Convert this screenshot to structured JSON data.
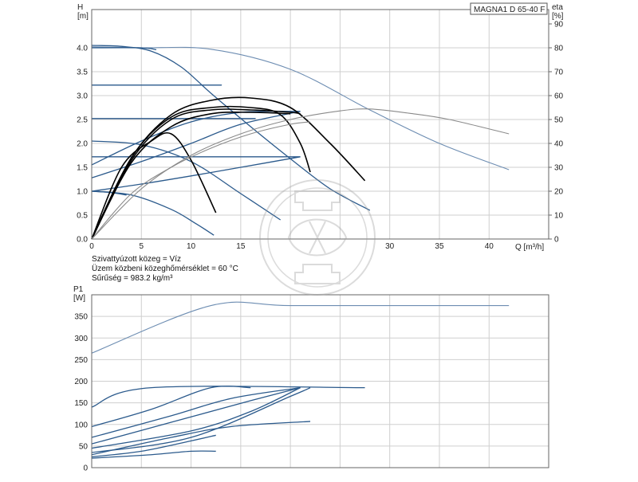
{
  "chart_data": [
    {
      "type": "line",
      "title": "MAGNA1 D 65-40 F",
      "ylabel": "H",
      "yunit": "[m]",
      "y2label": "eta",
      "y2unit": "[%]",
      "xlabel": "Q [m³/h]",
      "xlim": [
        0,
        46
      ],
      "ylim": [
        0,
        4.8
      ],
      "y2lim": [
        0,
        96
      ],
      "xticks": [
        0,
        5,
        10,
        15,
        20,
        25,
        30,
        35,
        40
      ],
      "xticklabels": [
        "0",
        "5",
        "10",
        "15",
        "",
        "",
        "30",
        "35",
        "40"
      ],
      "yticks": [
        0.0,
        0.5,
        1.0,
        1.5,
        2.0,
        2.5,
        3.0,
        3.5,
        4.0
      ],
      "yticklabels": [
        "0.0",
        "0.5",
        "1.0",
        "1.5",
        "2.0",
        "2.5",
        "3.0",
        "3.5",
        "4.0"
      ],
      "y2ticks": [
        0,
        10,
        20,
        30,
        40,
        50,
        60,
        70,
        80,
        90
      ],
      "grid": true,
      "colors": {
        "curve": "#2b5a8c",
        "efficiency": "#000000",
        "twin": "#8a8a8a",
        "grid": "#cfcfcf"
      },
      "series": [
        {
          "role": "head-max-twin",
          "color": "#6d8db2",
          "x": [
            0,
            5,
            12,
            20,
            28,
            35,
            42
          ],
          "y": [
            4.02,
            4.0,
            3.97,
            3.55,
            2.7,
            2.0,
            1.45
          ]
        },
        {
          "role": "head-max",
          "color": "#2b5a8c",
          "x": [
            0,
            3,
            6,
            9,
            12,
            16,
            20,
            24,
            28
          ],
          "y": [
            4.05,
            4.03,
            3.93,
            3.6,
            3.05,
            2.35,
            1.68,
            1.05,
            0.6
          ]
        },
        {
          "role": "head-max-flat",
          "color": "#2b5a8c",
          "x": [
            0,
            5,
            6.5
          ],
          "y": [
            4.0,
            4.0,
            3.96
          ]
        },
        {
          "role": "const-pressure",
          "color": "#2b5a8c",
          "x": [
            0,
            12,
            12.5
          ],
          "y": [
            3.22,
            3.22,
            3.22
          ]
        },
        {
          "role": "const-pressure",
          "color": "#2b5a8c",
          "x": [
            0,
            15,
            16
          ],
          "y": [
            2.52,
            2.52,
            2.52
          ]
        },
        {
          "role": "const-pressure",
          "color": "#2b5a8c",
          "x": [
            0,
            21
          ],
          "y": [
            1.72,
            1.72
          ]
        },
        {
          "role": "prop-pressure",
          "color": "#2b5a8c",
          "x": [
            0,
            5,
            10,
            15,
            20,
            21
          ],
          "y": [
            1.55,
            2.05,
            2.45,
            2.65,
            2.67,
            2.67
          ]
        },
        {
          "role": "prop-pressure",
          "color": "#2b5a8c",
          "x": [
            0,
            5,
            10,
            15,
            21
          ],
          "y": [
            1.28,
            1.62,
            2.0,
            2.4,
            2.67
          ]
        },
        {
          "role": "prop-pressure",
          "color": "#2b5a8c",
          "x": [
            0,
            5,
            10,
            15,
            21
          ],
          "y": [
            1.0,
            1.15,
            1.32,
            1.5,
            1.72
          ]
        },
        {
          "role": "fixed-speed",
          "color": "#2b5a8c",
          "x": [
            0,
            5,
            10,
            15,
            19
          ],
          "y": [
            2.05,
            1.97,
            1.62,
            0.95,
            0.4
          ]
        },
        {
          "role": "fixed-speed",
          "color": "#2b5a8c",
          "x": [
            0,
            4,
            8,
            10.5,
            12.3
          ],
          "y": [
            1.0,
            0.92,
            0.62,
            0.32,
            0.08
          ]
        },
        {
          "role": "fixed-speed",
          "color": "#2b5a8c",
          "x": [
            0,
            2,
            3.5
          ],
          "y": [
            1.0,
            0.97,
            0.92
          ]
        },
        {
          "role": "efficiency",
          "color": "#000000",
          "x": [
            0,
            4,
            8,
            12,
            16,
            20,
            24,
            27.5
          ],
          "y": [
            0,
            1.7,
            2.6,
            2.9,
            2.95,
            2.75,
            2.0,
            1.22
          ]
        },
        {
          "role": "efficiency",
          "color": "#000000",
          "x": [
            0,
            4,
            8,
            12,
            16,
            19,
            21,
            22
          ],
          "y": [
            0,
            1.7,
            2.55,
            2.75,
            2.75,
            2.6,
            2.0,
            1.4
          ]
        },
        {
          "role": "efficiency",
          "color": "#000000",
          "x": [
            0,
            4,
            8,
            12,
            16,
            20,
            21
          ],
          "y": [
            0,
            1.65,
            2.5,
            2.7,
            2.7,
            2.65,
            2.62
          ]
        },
        {
          "role": "efficiency",
          "color": "#000000",
          "x": [
            0,
            4,
            8,
            12,
            16,
            20
          ],
          "y": [
            0,
            1.6,
            2.35,
            2.62,
            2.65,
            2.62
          ]
        },
        {
          "role": "efficiency",
          "color": "#000000",
          "x": [
            0,
            3,
            6,
            8,
            10,
            12.5
          ],
          "y": [
            0,
            1.5,
            2.05,
            2.2,
            1.65,
            0.55
          ]
        },
        {
          "role": "efficiency-twin",
          "color": "#8a8a8a",
          "x": [
            0,
            5,
            10,
            15,
            20,
            25,
            28,
            32,
            36,
            42
          ],
          "y": [
            0,
            1.05,
            1.75,
            2.2,
            2.5,
            2.68,
            2.72,
            2.63,
            2.5,
            2.2
          ]
        },
        {
          "role": "efficiency-twin-part",
          "color": "#8a8a8a",
          "x": [
            0,
            4,
            8,
            12,
            16,
            20,
            22
          ],
          "y": [
            0,
            0.95,
            1.5,
            1.9,
            2.2,
            2.4,
            2.45
          ]
        }
      ]
    },
    {
      "type": "line",
      "ylabel": "P1",
      "yunit": "[W]",
      "xlim": [
        0,
        46
      ],
      "ylim": [
        0,
        400
      ],
      "yticks": [
        0,
        50,
        100,
        150,
        200,
        250,
        300,
        350
      ],
      "yticklabels": [
        "0",
        "50",
        "100",
        "150",
        "200",
        "250",
        "300",
        "350"
      ],
      "xticks": [
        0,
        5,
        10,
        15,
        20,
        25,
        30,
        35,
        40
      ],
      "grid": true,
      "series": [
        {
          "role": "power-twin",
          "color": "#6d8db2",
          "x": [
            0,
            12,
            20,
            35,
            42
          ],
          "y": [
            265,
            375,
            375,
            375,
            375
          ]
        },
        {
          "role": "power-max",
          "color": "#2b5a8c",
          "x": [
            0,
            6,
            27.5
          ],
          "y": [
            140,
            185,
            185
          ]
        },
        {
          "role": "power",
          "color": "#2b5a8c",
          "x": [
            0,
            6,
            12,
            16
          ],
          "y": [
            95,
            135,
            185,
            185
          ]
        },
        {
          "role": "power",
          "color": "#2b5a8c",
          "x": [
            0,
            8,
            14,
            21
          ],
          "y": [
            70,
            120,
            160,
            185
          ]
        },
        {
          "role": "power",
          "color": "#2b5a8c",
          "x": [
            0,
            8,
            16,
            21
          ],
          "y": [
            55,
            105,
            155,
            185
          ]
        },
        {
          "role": "power",
          "color": "#2b5a8c",
          "x": [
            0,
            10,
            16,
            21
          ],
          "y": [
            45,
            85,
            130,
            185
          ]
        },
        {
          "role": "power",
          "color": "#2b5a8c",
          "x": [
            0,
            10,
            20,
            22
          ],
          "y": [
            35,
            70,
            165,
            185
          ]
        },
        {
          "role": "power",
          "color": "#2b5a8c",
          "x": [
            0,
            8,
            14,
            22
          ],
          "y": [
            30,
            70,
            95,
            107
          ]
        },
        {
          "role": "power",
          "color": "#2b5a8c",
          "x": [
            0,
            5,
            10,
            12.5
          ],
          "y": [
            25,
            38,
            62,
            75
          ]
        },
        {
          "role": "power",
          "color": "#2b5a8c",
          "x": [
            0,
            6,
            10,
            12.5
          ],
          "y": [
            22,
            30,
            38,
            38
          ]
        }
      ]
    }
  ],
  "notes": {
    "medium": "Szivattyúzott közeg = Víz",
    "temp": "Üzem közbeni közeghőmérséklet = 60 °C",
    "density": "Sűrűség = 983.2 kg/m³"
  },
  "watermark": {
    "icon": "seal-logo-watermark"
  }
}
